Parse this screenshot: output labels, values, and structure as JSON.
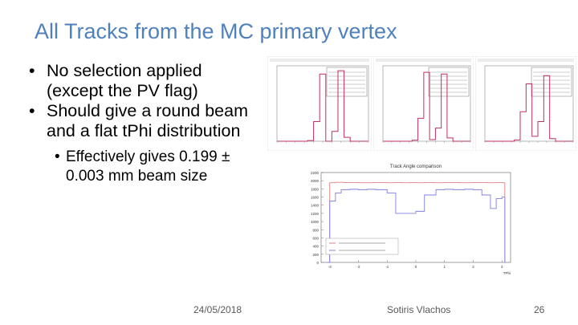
{
  "slide": {
    "title": "All Tracks from the MC primary vertex",
    "bullets": [
      {
        "text": "No selection applied (except the PV flag)"
      },
      {
        "text": "Should give a round beam and a flat tPhi distribution"
      }
    ],
    "sub_bullet": "Effectively gives 0.199 ± 0.003 mm beam size",
    "footer": {
      "date": "24/05/2018",
      "author": "Sotiris Vlachos",
      "page": "26"
    }
  },
  "chart_data": [
    {
      "type": "bar",
      "title": "",
      "series": [
        {
          "name": "",
          "values": [
            0,
            0,
            0,
            0,
            0,
            2,
            60,
            205,
            0,
            30,
            215,
            12,
            0,
            0,
            0
          ]
        }
      ],
      "ylim": [
        0,
        230
      ]
    },
    {
      "type": "bar",
      "title": "",
      "series": [
        {
          "name": "",
          "values": [
            0,
            0,
            0,
            0,
            0,
            3,
            70,
            210,
            5,
            40,
            205,
            10,
            0,
            0,
            0
          ]
        }
      ],
      "ylim": [
        0,
        230
      ]
    },
    {
      "type": "bar",
      "title": "",
      "series": [
        {
          "name": "",
          "values": [
            0,
            0,
            0,
            0,
            0,
            4,
            90,
            175,
            15,
            60,
            200,
            8,
            0,
            0,
            0
          ]
        }
      ],
      "ylim": [
        0,
        230
      ]
    },
    {
      "type": "line",
      "title": "Track Angle comparison",
      "xlabel": "TPhi",
      "ylabel": "",
      "xlim": [
        -3.3,
        3.3
      ],
      "ylim": [
        0,
        2200
      ],
      "x_ticks": [
        "-3",
        "-2",
        "-1",
        "0",
        "1",
        "2",
        "3"
      ],
      "y_ticks": [
        "0",
        "200",
        "400",
        "600",
        "800",
        "1000",
        "1200",
        "1400",
        "1600",
        "1800",
        "2000",
        "2200"
      ],
      "colors": {
        "upper": "#e08080",
        "lower": "#8080e0"
      },
      "series": [
        {
          "name": "",
          "x": [
            -3.1,
            -3.0,
            -2.8,
            -2.5,
            -2.0,
            -1.5,
            -1.0,
            -0.7,
            -0.5,
            -0.2,
            0.0,
            0.3,
            0.6,
            1.0,
            1.5,
            2.0,
            2.5,
            2.8,
            3.0,
            3.1
          ],
          "y": [
            0,
            1950,
            1960,
            1955,
            1950,
            1955,
            1950,
            1955,
            1950,
            1955,
            1950,
            1955,
            1950,
            1955,
            1950,
            1955,
            1950,
            1955,
            1950,
            0
          ]
        },
        {
          "name": "",
          "x": [
            -3.1,
            -3.0,
            -2.8,
            -2.6,
            -2.3,
            -2.0,
            -1.7,
            -1.4,
            -1.0,
            -0.7,
            -0.3,
            0.0,
            0.3,
            0.7,
            1.0,
            1.3,
            1.7,
            2.0,
            2.3,
            2.6,
            2.8,
            3.0,
            3.1
          ],
          "y": [
            0,
            1500,
            1700,
            1780,
            1790,
            1780,
            1790,
            1780,
            1700,
            1200,
            1200,
            1250,
            1650,
            1780,
            1790,
            1780,
            1790,
            1780,
            1650,
            1320,
            1560,
            1600,
            0
          ]
        }
      ]
    }
  ]
}
